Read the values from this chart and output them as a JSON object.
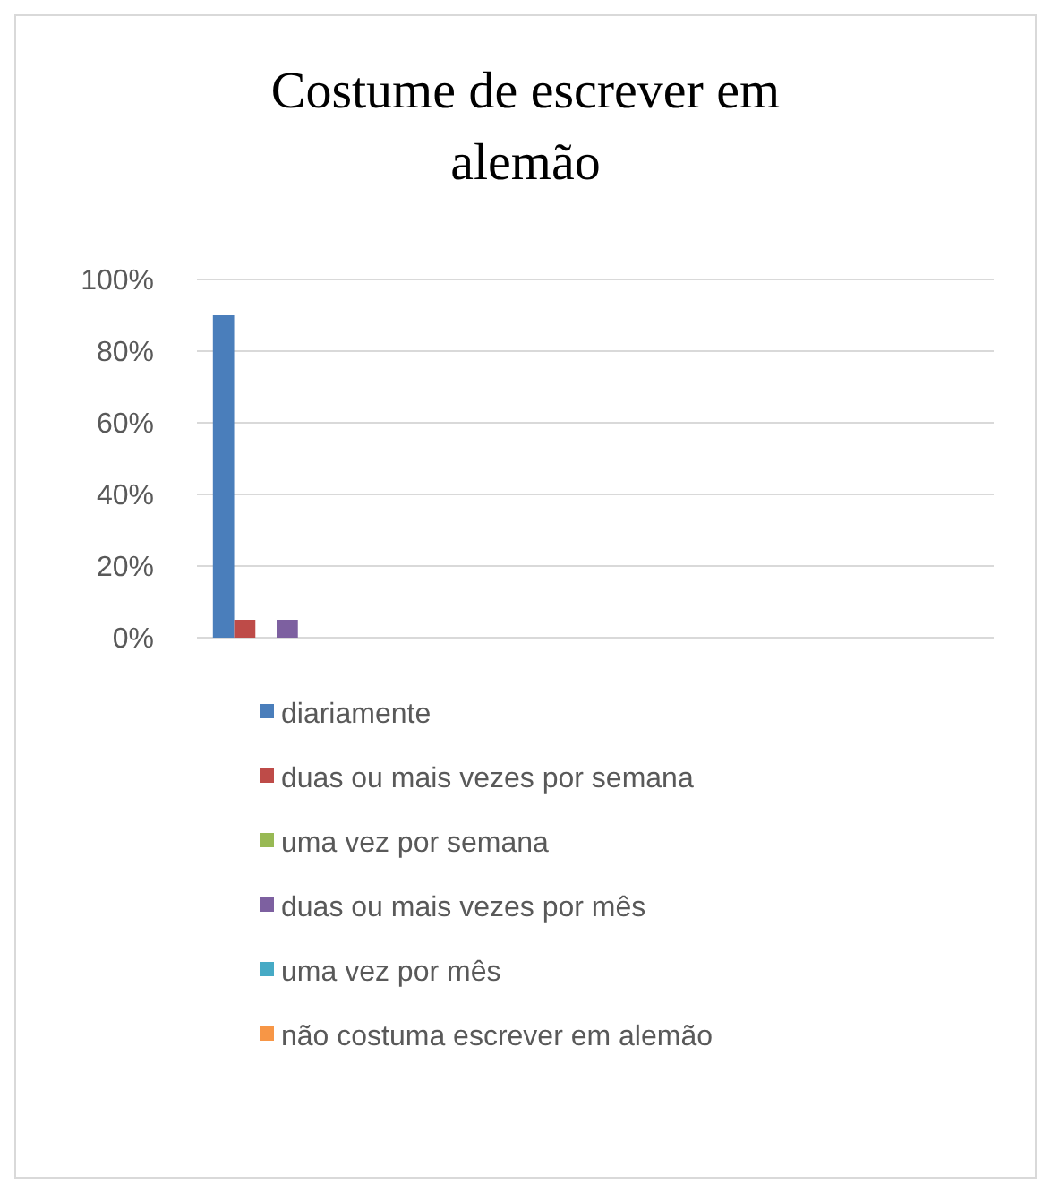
{
  "chart_data": {
    "type": "bar",
    "title": "Costume de escrever em alemão",
    "categories": [
      null,
      null,
      null,
      null,
      null
    ],
    "series": [
      {
        "name": "diariamente",
        "color": "#4a7ebb",
        "values": [
          90,
          null,
          null,
          null,
          null
        ]
      },
      {
        "name": "duas ou mais vezes por semana",
        "color": "#be4b48",
        "values": [
          5,
          null,
          null,
          null,
          null
        ]
      },
      {
        "name": "uma vez por semana",
        "color": "#98b954",
        "values": [
          0,
          null,
          null,
          null,
          null
        ]
      },
      {
        "name": "duas ou mais vezes por mês",
        "color": "#7d60a0",
        "values": [
          5,
          null,
          null,
          null,
          null
        ]
      },
      {
        "name": "uma vez por mês",
        "color": "#46aac5",
        "values": [
          0,
          null,
          null,
          null,
          null
        ]
      },
      {
        "name": "não costuma escrever em alemão",
        "color": "#f79646",
        "values": [
          0,
          null,
          null,
          null,
          null
        ]
      }
    ],
    "ylim": [
      0,
      100
    ],
    "yticks": [
      {
        "value": 0,
        "label": "0%"
      },
      {
        "value": 20,
        "label": "20%"
      },
      {
        "value": 40,
        "label": "40%"
      },
      {
        "value": 60,
        "label": "60%"
      },
      {
        "value": 80,
        "label": "80%"
      },
      {
        "value": 100,
        "label": "100%"
      }
    ],
    "grid": "y",
    "legend": "bottom"
  }
}
